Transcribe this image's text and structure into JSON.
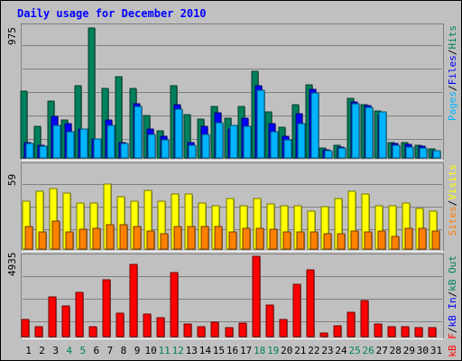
{
  "chart_data": {
    "type": "bar",
    "title": "Daily usage for December 2010",
    "x": [
      "1",
      "2",
      "3",
      "4",
      "5",
      "6",
      "7",
      "8",
      "9",
      "10",
      "11",
      "12",
      "13",
      "14",
      "15",
      "16",
      "17",
      "18",
      "19",
      "20",
      "21",
      "22",
      "23",
      "24",
      "25",
      "26",
      "27",
      "28",
      "29",
      "30",
      "31"
    ],
    "weekend_days": [
      "4",
      "5",
      "11",
      "12",
      "18",
      "19",
      "25",
      "26"
    ],
    "grid": true,
    "panels": [
      {
        "id": "hits-files-pages",
        "ymax_label": "975",
        "ymax": 975,
        "legend": [
          "Pages",
          "Files",
          "Hits"
        ],
        "series": [
          {
            "name": "Hits",
            "color": "#00805c",
            "values": [
              490,
              230,
              420,
              280,
              530,
              955,
              510,
              595,
              510,
              310,
              200,
              530,
              320,
              285,
              375,
              290,
              380,
              640,
              340,
              225,
              390,
              535,
              75,
              90,
              440,
              390,
              345,
              115,
              115,
              90,
              65
            ]
          },
          {
            "name": "Files",
            "color": "#0000ff",
            "values": [
              110,
              90,
              305,
              255,
              215,
              140,
              280,
              110,
              400,
              210,
              160,
              390,
              115,
              230,
              330,
              210,
              290,
              530,
              250,
              160,
              325,
              505,
              60,
              80,
              410,
              385,
              315,
              105,
              100,
              85,
              55
            ]
          },
          {
            "name": "Pages",
            "color": "#00b4ff",
            "values": [
              105,
              85,
              240,
              190,
              215,
              140,
              240,
              105,
              375,
              175,
              130,
              355,
              90,
              175,
              260,
              240,
              235,
              500,
              195,
              130,
              250,
              480,
              50,
              70,
              395,
              370,
              335,
              90,
              80,
              75,
              50
            ]
          }
        ]
      },
      {
        "id": "visits-sites",
        "ymax_label": "59",
        "ymax": 59,
        "legend": [
          "Sites",
          "Visits"
        ],
        "series": [
          {
            "name": "Visits",
            "color": "#ffff00",
            "values": [
              34,
              41,
              43,
              40,
              33,
              33,
              46,
              37,
              34,
              42,
              34,
              39,
              39,
              33,
              31,
              36,
              31,
              36,
              32,
              31,
              31,
              27,
              30,
              36,
              41,
              39,
              31,
              31,
              33,
              29,
              27
            ]
          },
          {
            "name": "Sites",
            "color": "#ff8000",
            "values": [
              16,
              12,
              20,
              12,
              14,
              15,
              17,
              17,
              16,
              13,
              11,
              16,
              16,
              16,
              16,
              12,
              15,
              15,
              14,
              12,
              12,
              12,
              11,
              11,
              13,
              12,
              13,
              9,
              15,
              15,
              13
            ]
          }
        ]
      },
      {
        "id": "kbytes",
        "ymax_label": "4935",
        "ymax": 4935,
        "legend": [
          "kB F",
          "kB In",
          "kB Out"
        ],
        "series": [
          {
            "name": "kB F",
            "color": "#ff0000",
            "values": [
              1050,
              590,
              2420,
              1880,
              2700,
              630,
              3500,
              1440,
              4420,
              1400,
              1140,
              3920,
              780,
              630,
              870,
              580,
              840,
              4935,
              1950,
              1050,
              3200,
              4100,
              210,
              690,
              1470,
              2230,
              760,
              620,
              590,
              560,
              560
            ]
          }
        ]
      }
    ]
  }
}
